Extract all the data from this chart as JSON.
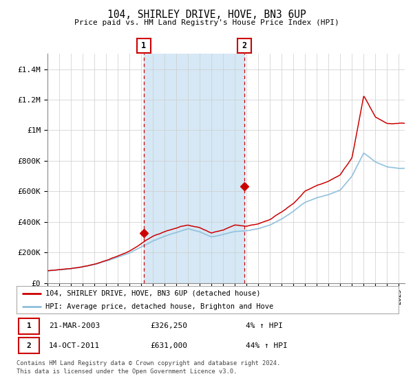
{
  "title": "104, SHIRLEY DRIVE, HOVE, BN3 6UP",
  "subtitle": "Price paid vs. HM Land Registry's House Price Index (HPI)",
  "ylim": [
    0,
    1500000
  ],
  "xlim_start": 1995.0,
  "xlim_end": 2025.5,
  "hpi_color": "#8dbfdc",
  "price_color": "#cc0000",
  "shade_color": "#d6e8f5",
  "plot_bg": "#ffffff",
  "transaction1_x": 2003.22,
  "transaction1_y": 326250,
  "transaction2_x": 2011.79,
  "transaction2_y": 631000,
  "legend_line1": "104, SHIRLEY DRIVE, HOVE, BN3 6UP (detached house)",
  "legend_line2": "HPI: Average price, detached house, Brighton and Hove",
  "table_row1": [
    "1",
    "21-MAR-2003",
    "£326,250",
    "4% ↑ HPI"
  ],
  "table_row2": [
    "2",
    "14-OCT-2011",
    "£631,000",
    "44% ↑ HPI"
  ],
  "footnote1": "Contains HM Land Registry data © Crown copyright and database right 2024.",
  "footnote2": "This data is licensed under the Open Government Licence v3.0.",
  "ytick_labels": [
    "£0",
    "£200K",
    "£400K",
    "£600K",
    "£800K",
    "£1M",
    "£1.2M",
    "£1.4M"
  ],
  "ytick_values": [
    0,
    200000,
    400000,
    600000,
    800000,
    1000000,
    1200000,
    1400000
  ],
  "hpi_waypoints_t": [
    1995,
    1996,
    1997,
    1998,
    1999,
    2000,
    2001,
    2002,
    2003,
    2004,
    2005,
    2006,
    2007,
    2008,
    2009,
    2010,
    2011,
    2012,
    2013,
    2014,
    2015,
    2016,
    2017,
    2018,
    2019,
    2020,
    2021,
    2022,
    2023,
    2024,
    2025
  ],
  "hpi_waypoints_v": [
    78000,
    85000,
    95000,
    108000,
    125000,
    148000,
    172000,
    200000,
    240000,
    280000,
    310000,
    335000,
    360000,
    340000,
    305000,
    320000,
    340000,
    345000,
    355000,
    380000,
    420000,
    470000,
    530000,
    560000,
    580000,
    610000,
    700000,
    850000,
    790000,
    760000,
    750000
  ],
  "price_waypoints_t": [
    1995,
    1996,
    1997,
    1998,
    1999,
    2000,
    2001,
    2002,
    2003,
    2004,
    2005,
    2006,
    2007,
    2008,
    2009,
    2010,
    2011,
    2012,
    2013,
    2014,
    2015,
    2016,
    2017,
    2018,
    2019,
    2020,
    2021,
    2022,
    2023,
    2024,
    2025
  ],
  "price_waypoints_v": [
    80000,
    88000,
    98000,
    112000,
    130000,
    155000,
    180000,
    210000,
    260000,
    310000,
    340000,
    365000,
    385000,
    365000,
    325000,
    345000,
    380000,
    375000,
    390000,
    420000,
    470000,
    530000,
    610000,
    650000,
    680000,
    720000,
    830000,
    1240000,
    1100000,
    1060000,
    1060000
  ]
}
